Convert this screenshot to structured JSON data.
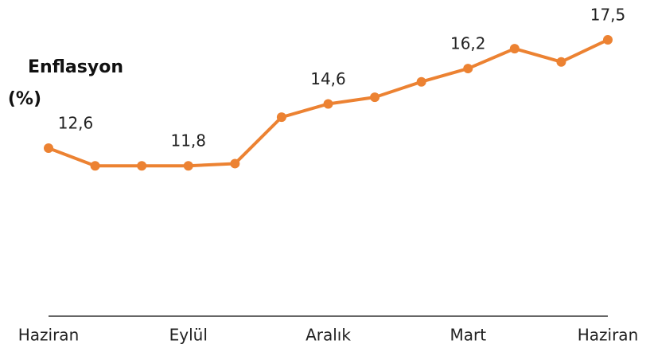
{
  "chart_data": {
    "type": "line",
    "title_lines": [
      "Enflasyon",
      "(%)"
    ],
    "categories": [
      "Haziran",
      null,
      null,
      "Eylül",
      null,
      null,
      "Aralık",
      null,
      null,
      "Mart",
      null,
      null,
      "Haziran"
    ],
    "series": [
      {
        "name": "Enflasyon",
        "color": "#ec8232",
        "values": [
          12.6,
          11.8,
          11.8,
          11.8,
          11.9,
          14.0,
          14.6,
          14.9,
          15.6,
          16.2,
          17.1,
          16.5,
          17.5
        ],
        "value_labels": [
          "12,6",
          null,
          null,
          "11,8",
          null,
          null,
          "14,6",
          null,
          null,
          "16,2",
          null,
          null,
          "17,5"
        ]
      }
    ],
    "ylim": [
      5,
      19.3
    ]
  }
}
